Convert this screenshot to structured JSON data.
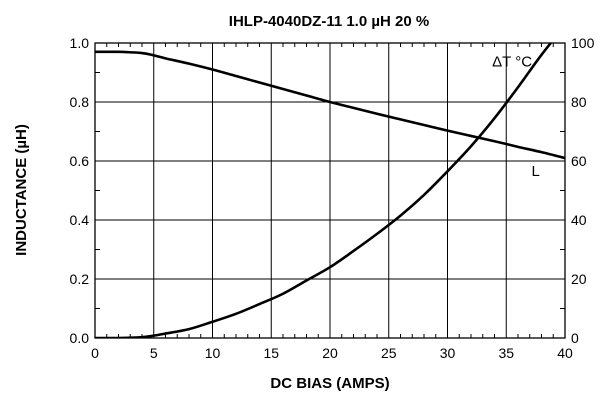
{
  "chart_data": {
    "type": "line",
    "title": "IHLP-4040DZ-11 1.0 µH 20 %",
    "xlabel": "DC BIAS (AMPS)",
    "ylabel": "INDUCTANCE (µH)",
    "y2label": "",
    "xlim": [
      0,
      40
    ],
    "ylim": [
      0,
      1.0
    ],
    "y2lim": [
      0,
      100
    ],
    "grid": true,
    "x_ticks": [
      "0",
      "5",
      "10",
      "15",
      "20",
      "25",
      "30",
      "35",
      "40"
    ],
    "y_ticks": [
      "0.0",
      "0.2",
      "0.4",
      "0.6",
      "0.8",
      "1.0"
    ],
    "y2_ticks": [
      "0",
      "20",
      "40",
      "60",
      "80",
      "100"
    ],
    "series": [
      {
        "name": "L",
        "axis": "left",
        "x": [
          0,
          2,
          4,
          5,
          6,
          8,
          10,
          12,
          14,
          16,
          18,
          20,
          22,
          24,
          26,
          28,
          30,
          32,
          34,
          36,
          38,
          40
        ],
        "y": [
          0.97,
          0.97,
          0.966,
          0.958,
          0.948,
          0.93,
          0.91,
          0.888,
          0.866,
          0.844,
          0.822,
          0.8,
          0.78,
          0.76,
          0.741,
          0.722,
          0.703,
          0.685,
          0.667,
          0.648,
          0.63,
          0.61
        ]
      },
      {
        "name": "ΔT °C",
        "axis": "right",
        "x": [
          0,
          2,
          4,
          5,
          6,
          8,
          10,
          12,
          14,
          16,
          18,
          20,
          22,
          24,
          26,
          28,
          30,
          32,
          34,
          36,
          38,
          40
        ],
        "y": [
          0,
          0,
          0.3,
          0.8,
          1.5,
          3,
          5.5,
          8.2,
          11.5,
          15,
          19.5,
          24,
          29.5,
          35.3,
          41.5,
          48.5,
          56.5,
          65,
          74.5,
          85,
          96,
          106
        ]
      }
    ],
    "annotations": [
      {
        "text": "ΔT °C",
        "x": 35.5,
        "y2": 92
      },
      {
        "text": "L",
        "x": 37.5,
        "y": 0.55
      }
    ]
  }
}
